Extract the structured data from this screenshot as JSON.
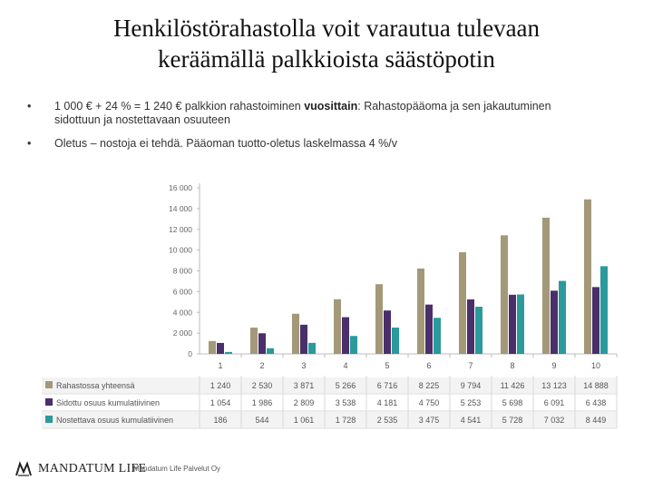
{
  "title_line1": "Henkilöstörahastolla voit varautua tulevaan",
  "title_line2": "keräämällä palkkioista säästöpotin",
  "bullets": [
    {
      "marker": "•",
      "prefix": "1 000 € + 24 % = 1 240 € palkkion rahastoiminen ",
      "bold": "vuosittain",
      "suffix": ": Rahastopääoma ja sen jakautuminen sidottuun ja nostettavaan osuuteen"
    },
    {
      "marker": "•",
      "prefix": "Oletus – nostoja ei tehdä. Pääoman tuotto-oletus laskelmassa 4 %/v",
      "bold": "",
      "suffix": ""
    }
  ],
  "footer": {
    "logo_text": "MANDATUM LIFE",
    "company": "Mandatum Life Palvelut Oy"
  },
  "chart_data": {
    "type": "bar",
    "categories": [
      "1",
      "2",
      "3",
      "4",
      "5",
      "6",
      "7",
      "8",
      "9",
      "10"
    ],
    "yticks": [
      "16 000",
      "14 000",
      "12 000",
      "10 000",
      "8 000",
      "6 000",
      "4 000",
      "2 000",
      "0"
    ],
    "ylim": [
      0,
      16000
    ],
    "grid": false,
    "legend": "table-below",
    "series": [
      {
        "name": "Rahastossa yhteensä",
        "color": "#a39878",
        "values": [
          1240,
          2530,
          3871,
          5266,
          6716,
          8225,
          9794,
          11426,
          13123,
          14888
        ],
        "labels": [
          "1 240",
          "2 530",
          "3 871",
          "5 266",
          "6 716",
          "8 225",
          "9 794",
          "11 426",
          "13 123",
          "14 888"
        ]
      },
      {
        "name": "Sidottu osuus kumulatiivinen",
        "color": "#4a2f6b",
        "values": [
          1054,
          1986,
          2809,
          3538,
          4181,
          4750,
          5253,
          5698,
          6091,
          6438
        ],
        "labels": [
          "1 054",
          "1 986",
          "2 809",
          "3 538",
          "4 181",
          "4 750",
          "5 253",
          "5 698",
          "6 091",
          "6 438"
        ]
      },
      {
        "name": "Nostettava osuus kumulatiivinen",
        "color": "#2a9a9c",
        "values": [
          186,
          544,
          1061,
          1728,
          2535,
          3475,
          4541,
          5728,
          7032,
          8449
        ],
        "labels": [
          "186",
          "544",
          "1 061",
          "1 728",
          "2 535",
          "3 475",
          "4 541",
          "5 728",
          "7 032",
          "8 449"
        ]
      }
    ]
  }
}
